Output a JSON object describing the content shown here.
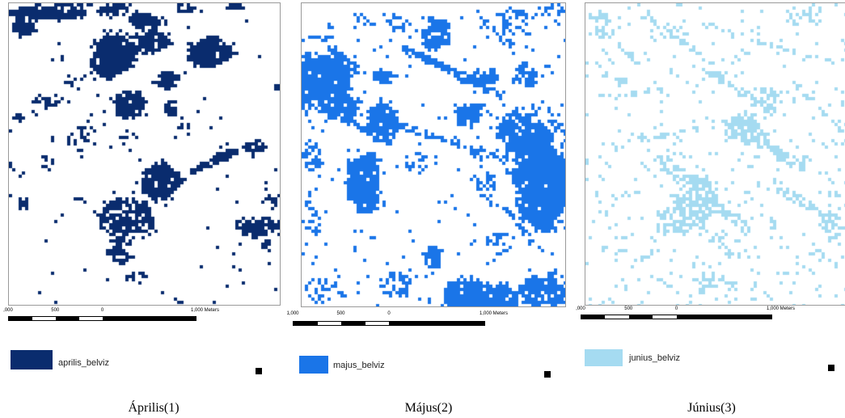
{
  "panels": [
    {
      "legend_label": "aprilis_belviz",
      "color": "#0a2c6e",
      "scale_labels": [
        ",000",
        "500",
        "0",
        "1,000 Meters"
      ],
      "caption": "Április(1)"
    },
    {
      "legend_label": "majus_belviz",
      "color": "#1a75e8",
      "scale_labels": [
        "1,000",
        "500",
        "0",
        "1,000 Meters"
      ],
      "caption": "Május(2)"
    },
    {
      "legend_label": "junius_belviz",
      "color": "#a5dbf1",
      "scale_labels": [
        ",000",
        "500",
        "0",
        "1,000 Meters"
      ],
      "caption": "Június(3)"
    }
  ]
}
